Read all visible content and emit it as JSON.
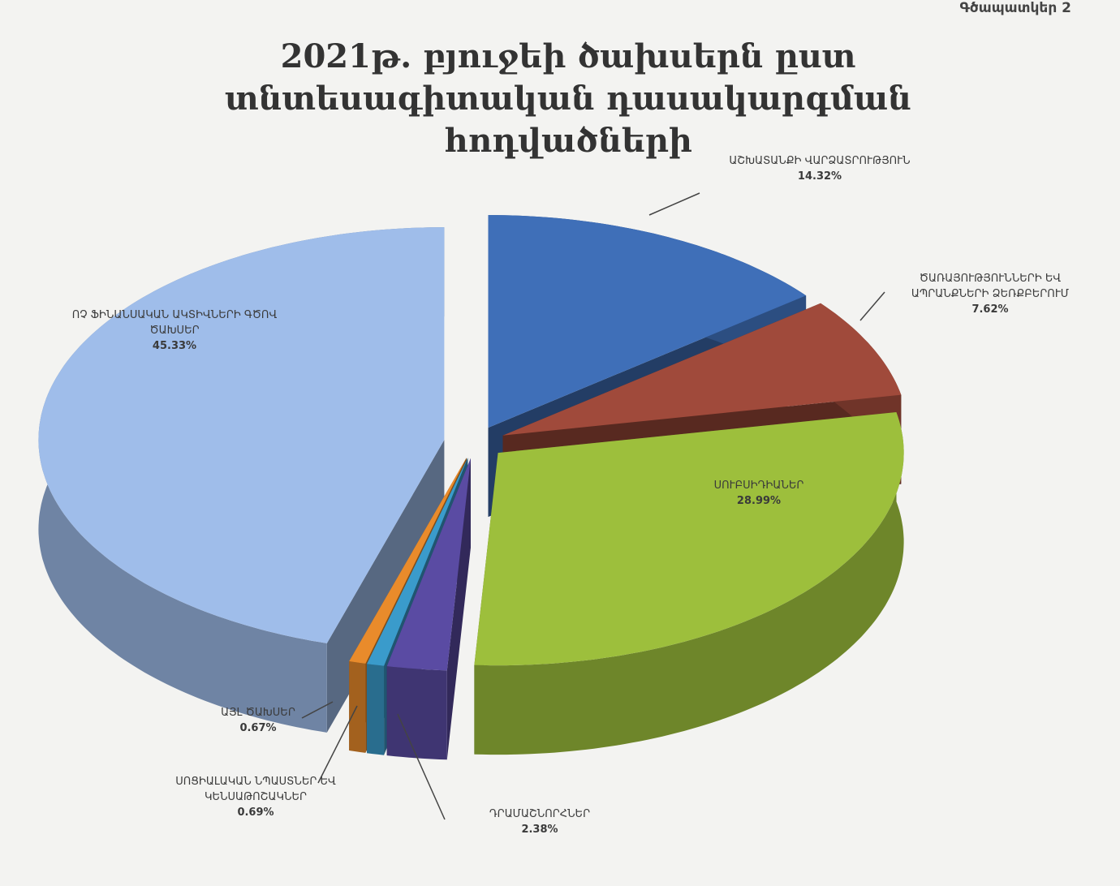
{
  "corner_label": "Գծապատկեր 2",
  "chart_data": {
    "type": "pie",
    "title": "2021թ. բյուջեի ծախսերն ըստ տնտեսագիտական դասակարգման հոդվածների",
    "categories": [
      "ԱՇԽԱՏԱՆՔԻ ՎԱՐՁԱՏՐՈՒԹՅՈՒՆ",
      "ԾԱՌԱՅՈՒԹՅՈՒՆՆԵՐԻ ԵՎ ԱՊՐԱՆՔՆԵՐԻ ՁԵՌՔԲԵՐՈՒՄ",
      "ՍՈՒԲՍԻԴԻԱՆԵՐ",
      "ԴՐԱՄԱՇՆՈՐՀՆԵՐ",
      "ՍՈՑԻԱԼԱԿԱՆ ՆՊԱՍՏՆԵՐ ԵՎ ԿԵՆՍԱԹՈՇԱԿՆԵՐ",
      "ԱՅԼ ԾԱԽՍԵՐ",
      "ՈՉ ՖԻՆԱՆՍԱԿԱՆ ԱԿՏԻՎՆԵՐԻ ԳԾՈՎ ԾԱԽՍԵՐ"
    ],
    "values": [
      14.32,
      7.62,
      28.99,
      2.38,
      0.69,
      0.67,
      45.33
    ],
    "value_labels": [
      "14.32%",
      "7.62%",
      "28.99%",
      "2.38%",
      "0.69%",
      "0.67%",
      "45.33%"
    ],
    "colors": [
      "#3f6fb8",
      "#a04a3b",
      "#9dbf3c",
      "#5a4ba3",
      "#3a9bcb",
      "#e98b2b",
      "#9fbdea"
    ]
  }
}
